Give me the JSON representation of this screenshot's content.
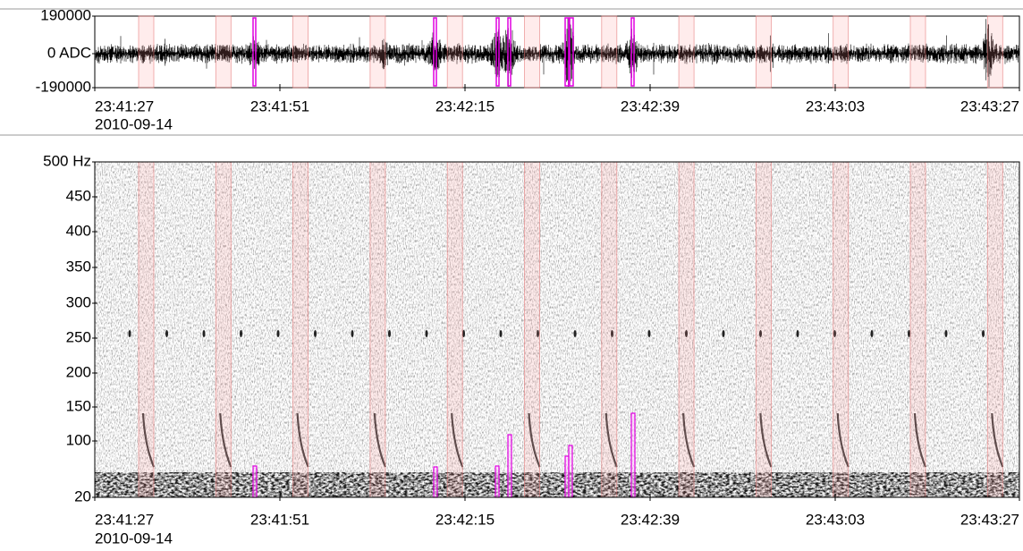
{
  "waveform": {
    "y_labels": [
      "190000",
      "0 ADC",
      "-190000"
    ],
    "x_labels": [
      "23:41:27",
      "23:41:51",
      "23:42:15",
      "23:42:39",
      "23:43:03",
      "23:43:27"
    ],
    "date": "2010-09-14"
  },
  "spectrogram": {
    "y_labels": [
      "500 Hz",
      "450",
      "400",
      "350",
      "300",
      "250",
      "200",
      "150",
      "100",
      "20"
    ],
    "x_labels": [
      "23:41:27",
      "23:41:51",
      "23:42:15",
      "23:42:39",
      "23:43:03",
      "23:43:27"
    ],
    "date": "2010-09-14"
  }
}
